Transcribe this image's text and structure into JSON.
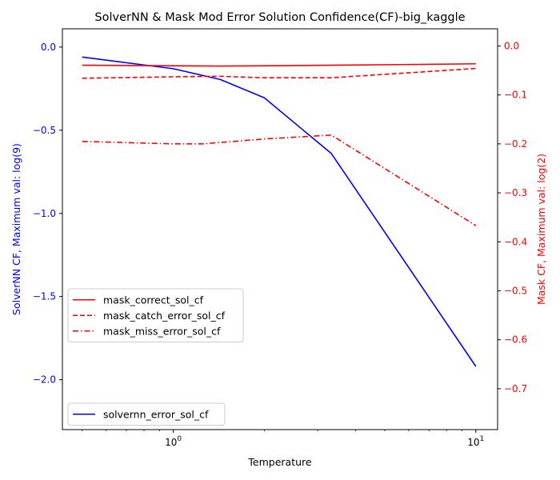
{
  "chart_data": {
    "type": "line",
    "title": "SolverNN & Mask Mod Error Solution Confidence(CF)-big_kaggle",
    "xlabel": "Temperature",
    "xscale": "log",
    "xlim": [
      0.43,
      11.8
    ],
    "x_ticks": [
      {
        "value": 1,
        "base": "10",
        "exp": "0"
      },
      {
        "value": 10,
        "base": "10",
        "exp": "1"
      }
    ],
    "left_axis": {
      "label": "SolverNN CF, Maximum val: log(9)",
      "color": "#0000ff",
      "ylim": [
        -2.3,
        0.11
      ],
      "ticks": [
        0.0,
        -0.5,
        -1.0,
        -1.5,
        -2.0
      ],
      "tick_labels": [
        "0.0",
        "−0.5",
        "−1.0",
        "−1.5",
        "−2.0"
      ]
    },
    "right_axis": {
      "label": "Mask CF, Maximum val: log(2)",
      "color": "#ff0000",
      "ylim": [
        -0.7835,
        0.035
      ],
      "ticks": [
        0.0,
        -0.1,
        -0.2,
        -0.3,
        -0.4,
        -0.5,
        -0.6,
        -0.7
      ],
      "tick_labels": [
        "0.0",
        "−0.1",
        "−0.2",
        "−0.3",
        "−0.4",
        "−0.5",
        "−0.6",
        "−0.7"
      ]
    },
    "series": [
      {
        "name": "solvernn_error_sol_cf",
        "axis": "left",
        "color": "#0000ff",
        "dash": "solid",
        "x": [
          0.5,
          1.0,
          1.43,
          2.0,
          3.33,
          10.0
        ],
        "y": [
          -0.06,
          -0.13,
          -0.195,
          -0.305,
          -0.64,
          -1.92
        ]
      },
      {
        "name": "mask_correct_sol_cf",
        "axis": "right",
        "color": "#ff0000",
        "dash": "solid",
        "x": [
          0.5,
          1.0,
          1.43,
          2.0,
          3.33,
          10.0
        ],
        "y": [
          -0.0395,
          -0.0405,
          -0.041,
          -0.0405,
          -0.0395,
          -0.0365
        ]
      },
      {
        "name": "mask_catch_error_sol_cf",
        "axis": "right",
        "color": "#ff0000",
        "dash": "dashed",
        "x": [
          0.5,
          1.0,
          1.43,
          2.0,
          3.33,
          10.0
        ],
        "y": [
          -0.066,
          -0.063,
          -0.062,
          -0.065,
          -0.065,
          -0.046
        ]
      },
      {
        "name": "mask_miss_error_sol_cf",
        "axis": "right",
        "color": "#ff0000",
        "dash": "dashdot",
        "x": [
          0.5,
          1.0,
          1.25,
          2.0,
          3.33,
          10.0
        ],
        "y": [
          -0.195,
          -0.2,
          -0.2,
          -0.19,
          -0.182,
          -0.367
        ]
      }
    ],
    "legends": [
      {
        "placement": "center-left",
        "entries": [
          "mask_correct_sol_cf",
          "mask_catch_error_sol_cf",
          "mask_miss_error_sol_cf"
        ]
      },
      {
        "placement": "lower-left",
        "entries": [
          "solvernn_error_sol_cf"
        ]
      }
    ],
    "grid": false
  }
}
